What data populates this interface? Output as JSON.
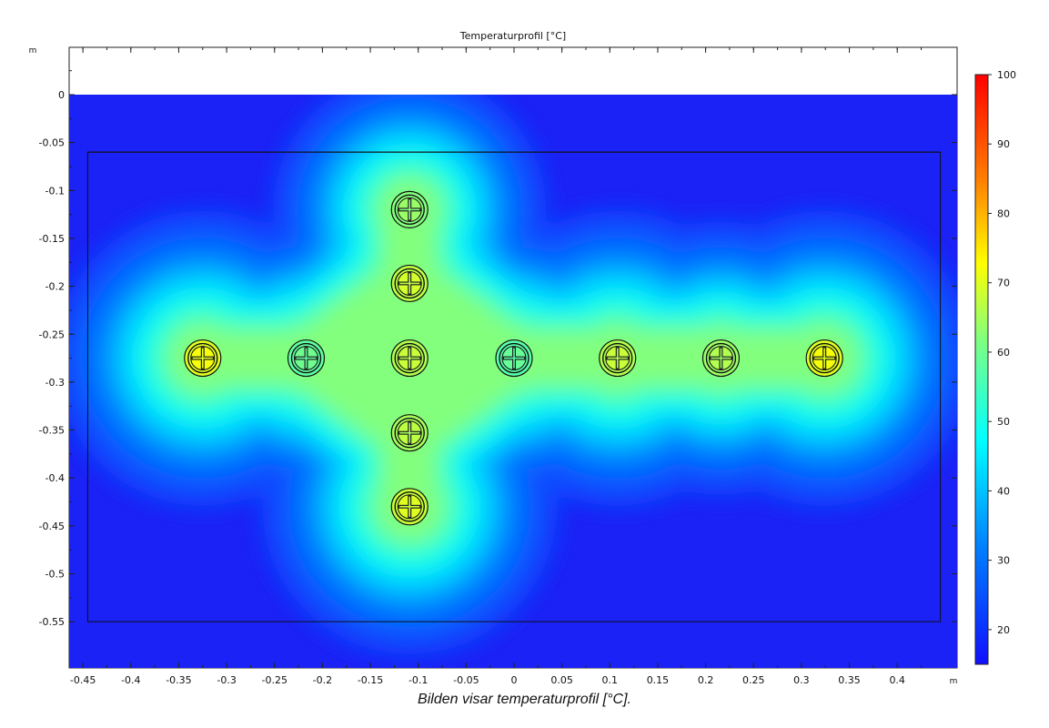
{
  "chart_data": {
    "type": "heatmap",
    "title": "Temperaturprofil [°C]",
    "x_unit": "m",
    "y_unit": "m",
    "xlim": [
      -0.465,
      0.465
    ],
    "ylim": [
      -0.6,
      0.05
    ],
    "x_ticks": [
      -0.45,
      -0.4,
      -0.35,
      -0.3,
      -0.25,
      -0.2,
      -0.15,
      -0.1,
      -0.05,
      0,
      0.05,
      0.1,
      0.15,
      0.2,
      0.25,
      0.3,
      0.35,
      0.4
    ],
    "x_tick_labels": [
      "-0.45",
      "-0.4",
      "-0.35",
      "-0.3",
      "-0.25",
      "-0.2",
      "-0.15",
      "-0.1",
      "-0.05",
      "0",
      "0.05",
      "0.1",
      "0.15",
      "0.2",
      "0.25",
      "0.3",
      "0.35",
      "0.4"
    ],
    "y_ticks": [
      0,
      -0.05,
      -0.1,
      -0.15,
      -0.2,
      -0.25,
      -0.3,
      -0.35,
      -0.4,
      -0.45,
      -0.5,
      -0.55
    ],
    "y_tick_labels": [
      "0",
      "-0.05",
      "-0.1",
      "-0.15",
      "-0.2",
      "-0.25",
      "-0.3",
      "-0.35",
      "-0.4",
      "-0.45",
      "-0.5",
      "-0.55"
    ],
    "domain": {
      "x": [
        -0.465,
        0.465
      ],
      "y": [
        -0.6,
        0
      ]
    },
    "inner_boundaries": [
      {
        "kind": "line",
        "y": -0.06,
        "x": [
          -0.445,
          0.445
        ]
      },
      {
        "kind": "rect",
        "x": [
          -0.445,
          0.445
        ],
        "y": [
          -0.55,
          -0.06
        ]
      }
    ],
    "pipes": [
      {
        "x": -0.325,
        "y": -0.275,
        "temperature": 70
      },
      {
        "x": -0.217,
        "y": -0.275,
        "temperature": 58
      },
      {
        "x": -0.109,
        "y": -0.275,
        "temperature": 66
      },
      {
        "x": 0.0,
        "y": -0.275,
        "temperature": 57
      },
      {
        "x": 0.108,
        "y": -0.275,
        "temperature": 66
      },
      {
        "x": 0.216,
        "y": -0.275,
        "temperature": 64
      },
      {
        "x": 0.324,
        "y": -0.275,
        "temperature": 70
      },
      {
        "x": -0.109,
        "y": -0.12,
        "temperature": 62
      },
      {
        "x": -0.109,
        "y": -0.197,
        "temperature": 67
      },
      {
        "x": -0.109,
        "y": -0.353,
        "temperature": 65
      },
      {
        "x": -0.109,
        "y": -0.43,
        "temperature": 68
      }
    ],
    "background_temperature": 18,
    "colorbar": {
      "min": 15,
      "max": 100,
      "ticks": [
        20,
        30,
        40,
        50,
        60,
        70,
        80,
        90,
        100
      ],
      "colormap": "rainbow"
    },
    "grid": false
  },
  "caption": "Bilden visar temperaturprofil [°C]."
}
